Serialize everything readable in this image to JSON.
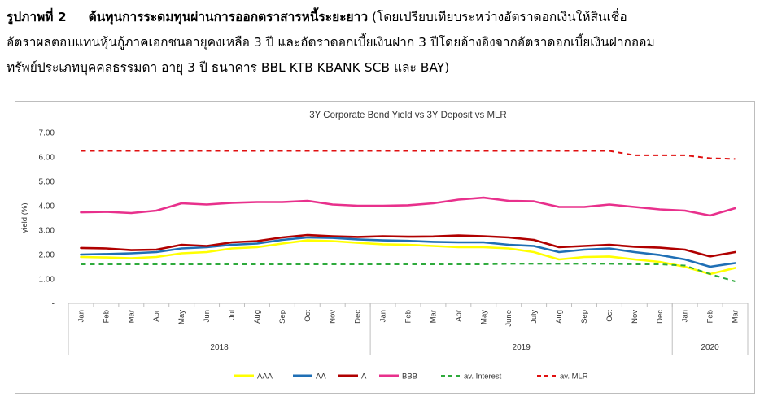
{
  "caption": {
    "label": "รูปภาพที่ 2",
    "title": "ต้นทุนการระดมทุนผ่านการออกตราสารหนี้ระยะยาว",
    "line1_rest": "(โดยเปรียบเทียบระหว่างอัตราดอกเงินให้สินเชื่อ",
    "line2": "อัตราผลตอบแทนหุ้นกู้ภาคเอกชนอายุคงเหลือ 3 ปี และอัตราดอกเบี้ยเงินฝาก 3 ปีโดยอ้างอิงจากอัตราดอกเบี้ยเงินฝากออม",
    "line3": "ทรัพย์ประเภทบุคคลธรรมดา อายุ 3 ปี ธนาคาร  BBL KTB  KBANK  SCB และ BAY)"
  },
  "chart_data": {
    "type": "line",
    "title": "3Y Corporate Bond Yield  vs 3Y Deposit vs MLR",
    "xlabel": "",
    "ylabel": "yield (%)",
    "ylim": [
      0,
      7
    ],
    "yticks": [
      "7.00",
      "6.00",
      "5.00",
      "4.00",
      "3.00",
      "2.00",
      "1.00",
      "-"
    ],
    "ytick_values": [
      7,
      6,
      5,
      4,
      3,
      2,
      1,
      0
    ],
    "categories": [
      "Jan",
      "Feb",
      "Mar",
      "Apr",
      "May",
      "Jun",
      "Jul",
      "Aug",
      "Sep",
      "Oct",
      "Nov",
      "Dec",
      "Jan",
      "Feb",
      "Mar",
      "Apr",
      "May",
      "June",
      "July",
      "Aug",
      "Sep",
      "Oct",
      "Nov",
      "Dec",
      "Jan",
      "Feb",
      "Mar"
    ],
    "years": [
      {
        "label": "2018",
        "start": 0,
        "count": 12
      },
      {
        "label": "2019",
        "start": 12,
        "count": 12
      },
      {
        "label": "2020",
        "start": 24,
        "count": 3
      }
    ],
    "grid": false,
    "legend_position": "bottom",
    "series": [
      {
        "name": "AAA",
        "color": "#ffff00",
        "dash": false,
        "values": [
          1.9,
          1.88,
          1.85,
          1.9,
          2.05,
          2.1,
          2.25,
          2.3,
          2.45,
          2.58,
          2.55,
          2.48,
          2.42,
          2.4,
          2.35,
          2.3,
          2.3,
          2.25,
          2.1,
          1.8,
          1.9,
          1.92,
          1.8,
          1.7,
          1.5,
          1.2,
          1.45
        ]
      },
      {
        "name": "AA",
        "color": "#1f6fb5",
        "dash": false,
        "values": [
          2.0,
          2.02,
          2.05,
          2.1,
          2.25,
          2.3,
          2.4,
          2.45,
          2.6,
          2.7,
          2.68,
          2.62,
          2.58,
          2.56,
          2.52,
          2.5,
          2.5,
          2.4,
          2.35,
          2.1,
          2.2,
          2.25,
          2.1,
          1.98,
          1.8,
          1.5,
          1.65
        ]
      },
      {
        "name": "A",
        "color": "#b00000",
        "dash": false,
        "values": [
          2.27,
          2.25,
          2.18,
          2.2,
          2.4,
          2.35,
          2.5,
          2.55,
          2.7,
          2.8,
          2.75,
          2.72,
          2.75,
          2.73,
          2.74,
          2.78,
          2.75,
          2.7,
          2.6,
          2.3,
          2.35,
          2.4,
          2.32,
          2.28,
          2.2,
          1.92,
          2.1
        ]
      },
      {
        "name": "BBB",
        "color": "#e8308c",
        "dash": false,
        "values": [
          3.73,
          3.75,
          3.7,
          3.8,
          4.1,
          4.05,
          4.12,
          4.15,
          4.15,
          4.2,
          4.05,
          4.0,
          4.0,
          4.02,
          4.1,
          4.25,
          4.33,
          4.2,
          4.18,
          3.95,
          3.95,
          4.05,
          3.95,
          3.85,
          3.8,
          3.6,
          3.9
        ]
      },
      {
        "name": "av. Interest",
        "color": "#2eaa3c",
        "dash": true,
        "values": [
          1.6,
          1.6,
          1.6,
          1.6,
          1.6,
          1.6,
          1.6,
          1.6,
          1.6,
          1.6,
          1.6,
          1.6,
          1.6,
          1.6,
          1.6,
          1.6,
          1.6,
          1.62,
          1.62,
          1.62,
          1.62,
          1.62,
          1.6,
          1.6,
          1.55,
          1.2,
          0.9
        ]
      },
      {
        "name": "av. MLR",
        "color": "#e01010",
        "dash": true,
        "values": [
          6.25,
          6.25,
          6.25,
          6.25,
          6.25,
          6.25,
          6.25,
          6.25,
          6.25,
          6.25,
          6.25,
          6.25,
          6.25,
          6.25,
          6.25,
          6.25,
          6.25,
          6.25,
          6.25,
          6.25,
          6.25,
          6.25,
          6.07,
          6.07,
          6.07,
          5.95,
          5.92
        ]
      }
    ]
  }
}
